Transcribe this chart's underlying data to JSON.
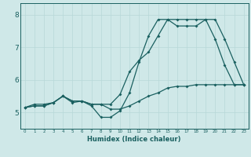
{
  "xlabel": "Humidex (Indice chaleur)",
  "xlim": [
    -0.5,
    23.5
  ],
  "ylim": [
    4.5,
    8.35
  ],
  "yticks": [
    5,
    6,
    7,
    8
  ],
  "xticks": [
    0,
    1,
    2,
    3,
    4,
    5,
    6,
    7,
    8,
    9,
    10,
    11,
    12,
    13,
    14,
    15,
    16,
    17,
    18,
    19,
    20,
    21,
    22,
    23
  ],
  "bg_color": "#cfe8e8",
  "grid_color": "#b8d8d8",
  "line_color": "#1a6060",
  "line1_x": [
    0,
    1,
    2,
    3,
    4,
    5,
    6,
    7,
    8,
    9,
    10,
    11,
    12,
    13,
    14,
    15,
    16,
    17,
    18,
    19,
    20,
    21,
    22,
    23
  ],
  "line1_y": [
    5.15,
    5.25,
    5.25,
    5.3,
    5.5,
    5.35,
    5.35,
    5.25,
    5.25,
    5.1,
    5.1,
    5.2,
    5.35,
    5.5,
    5.6,
    5.75,
    5.8,
    5.8,
    5.85,
    5.85,
    5.85,
    5.85,
    5.85,
    5.85
  ],
  "line2_x": [
    0,
    1,
    2,
    3,
    4,
    5,
    6,
    7,
    8,
    9,
    10,
    11,
    12,
    13,
    14,
    15,
    16,
    17,
    18,
    19,
    20,
    21,
    22,
    23
  ],
  "line2_y": [
    5.15,
    5.2,
    5.2,
    5.3,
    5.5,
    5.3,
    5.35,
    5.2,
    4.85,
    4.85,
    5.05,
    5.6,
    6.55,
    7.35,
    7.85,
    7.85,
    7.65,
    7.65,
    7.65,
    7.85,
    7.25,
    6.45,
    5.85,
    5.85
  ],
  "line3_x": [
    0,
    1,
    2,
    3,
    4,
    5,
    6,
    7,
    8,
    9,
    10,
    11,
    12,
    13,
    14,
    15,
    16,
    17,
    18,
    19,
    20,
    21,
    22,
    23
  ],
  "line3_y": [
    5.15,
    5.2,
    5.2,
    5.3,
    5.5,
    5.35,
    5.35,
    5.25,
    5.25,
    5.25,
    5.55,
    6.25,
    6.6,
    6.85,
    7.35,
    7.85,
    7.85,
    7.85,
    7.85,
    7.85,
    7.85,
    7.25,
    6.55,
    5.85
  ]
}
